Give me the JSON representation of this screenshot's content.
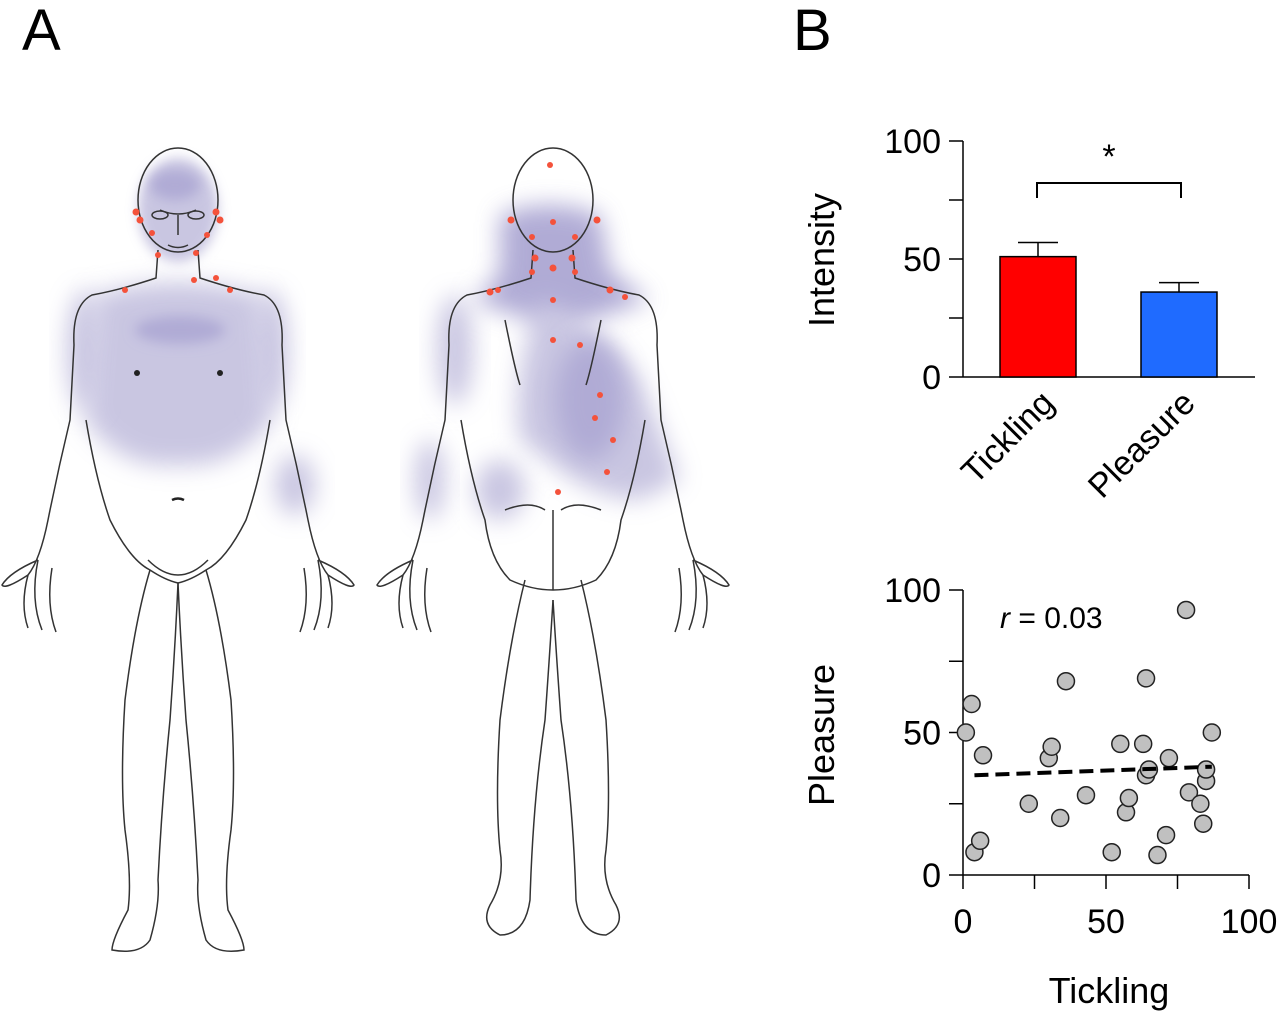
{
  "panel_labels": {
    "a": "A",
    "b": "B"
  },
  "heatmap": {
    "front_color": "#b7b3d8",
    "back_color": "#b7b3d8",
    "hotspot_color": "#9690c8",
    "point_color": "#f4523b"
  },
  "chart_data": [
    {
      "type": "bar",
      "categories": [
        "Tickling",
        "Pleasure"
      ],
      "values": [
        51,
        36
      ],
      "errors": [
        6,
        4
      ],
      "colors": [
        "#ff0000",
        "#1f6bff"
      ],
      "ylabel": "Intensity",
      "xlabel": "",
      "ylim": [
        0,
        100
      ],
      "yticks": [
        "0",
        "50",
        "100"
      ],
      "significance": "*"
    },
    {
      "type": "scatter",
      "xlabel": "Tickling",
      "ylabel": "Pleasure",
      "xlim": [
        0,
        100
      ],
      "ylim": [
        0,
        100
      ],
      "xticks": [
        "0",
        "50",
        "100"
      ],
      "yticks": [
        "0",
        "50",
        "100"
      ],
      "annotation_r": "r",
      "annotation_value": " = 0.03",
      "point_color": "#c0c0c0",
      "trend": {
        "x": [
          4,
          87
        ],
        "y": [
          35,
          38
        ]
      },
      "points": [
        {
          "x": 1,
          "y": 50
        },
        {
          "x": 3,
          "y": 60
        },
        {
          "x": 4,
          "y": 8
        },
        {
          "x": 6,
          "y": 12
        },
        {
          "x": 7,
          "y": 42
        },
        {
          "x": 23,
          "y": 25
        },
        {
          "x": 30,
          "y": 41
        },
        {
          "x": 31,
          "y": 45
        },
        {
          "x": 34,
          "y": 20
        },
        {
          "x": 36,
          "y": 68
        },
        {
          "x": 43,
          "y": 28
        },
        {
          "x": 52,
          "y": 8
        },
        {
          "x": 55,
          "y": 46
        },
        {
          "x": 57,
          "y": 22
        },
        {
          "x": 58,
          "y": 27
        },
        {
          "x": 63,
          "y": 46
        },
        {
          "x": 64,
          "y": 35
        },
        {
          "x": 64,
          "y": 69
        },
        {
          "x": 65,
          "y": 37
        },
        {
          "x": 68,
          "y": 7
        },
        {
          "x": 71,
          "y": 14
        },
        {
          "x": 72,
          "y": 41
        },
        {
          "x": 78,
          "y": 93
        },
        {
          "x": 79,
          "y": 29
        },
        {
          "x": 83,
          "y": 25
        },
        {
          "x": 84,
          "y": 18
        },
        {
          "x": 85,
          "y": 33
        },
        {
          "x": 85,
          "y": 37
        },
        {
          "x": 87,
          "y": 50
        }
      ]
    }
  ]
}
